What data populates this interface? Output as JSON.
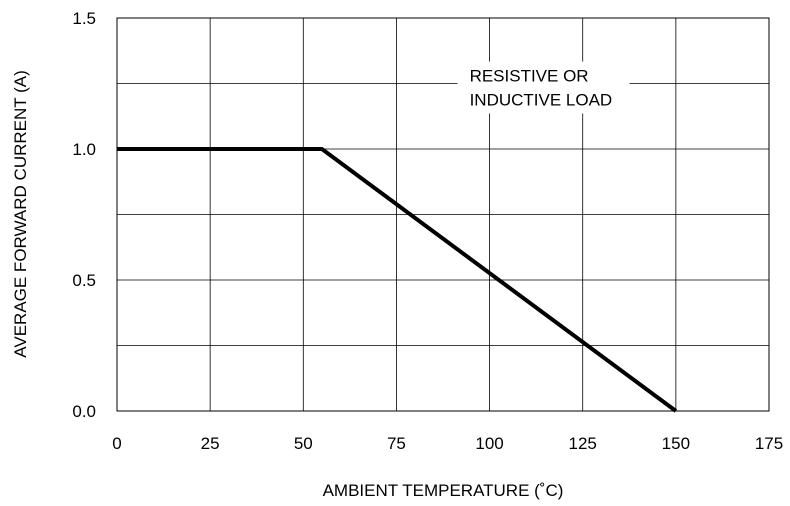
{
  "chart_data": {
    "type": "line",
    "title": "",
    "xlabel": "AMBIENT TEMPERATURE (˚C)",
    "ylabel": "AVERAGE FORWARD CURRENT (A)",
    "xlim": [
      0,
      175
    ],
    "ylim": [
      0,
      1.5
    ],
    "x_ticks": [
      0,
      25,
      50,
      75,
      100,
      125,
      150,
      175
    ],
    "x_tick_labels": [
      "0",
      "25",
      "50",
      "75",
      "100",
      "125",
      "150",
      "175"
    ],
    "y_ticks": [
      0,
      0.5,
      1.0,
      1.5
    ],
    "y_tick_labels": [
      "0.0",
      "0.5",
      "1.0",
      "1.5"
    ],
    "y_minor_gridlines": [
      0.25,
      0.75,
      1.25
    ],
    "grid": true,
    "annotation": {
      "lines": [
        "RESISTIVE OR",
        "INDUCTIVE LOAD"
      ],
      "x": 100,
      "y": 1.25
    },
    "series": [
      {
        "x": [
          0,
          55,
          150
        ],
        "y": [
          1.0,
          1.0,
          0.0
        ],
        "color": "#000000"
      }
    ]
  }
}
